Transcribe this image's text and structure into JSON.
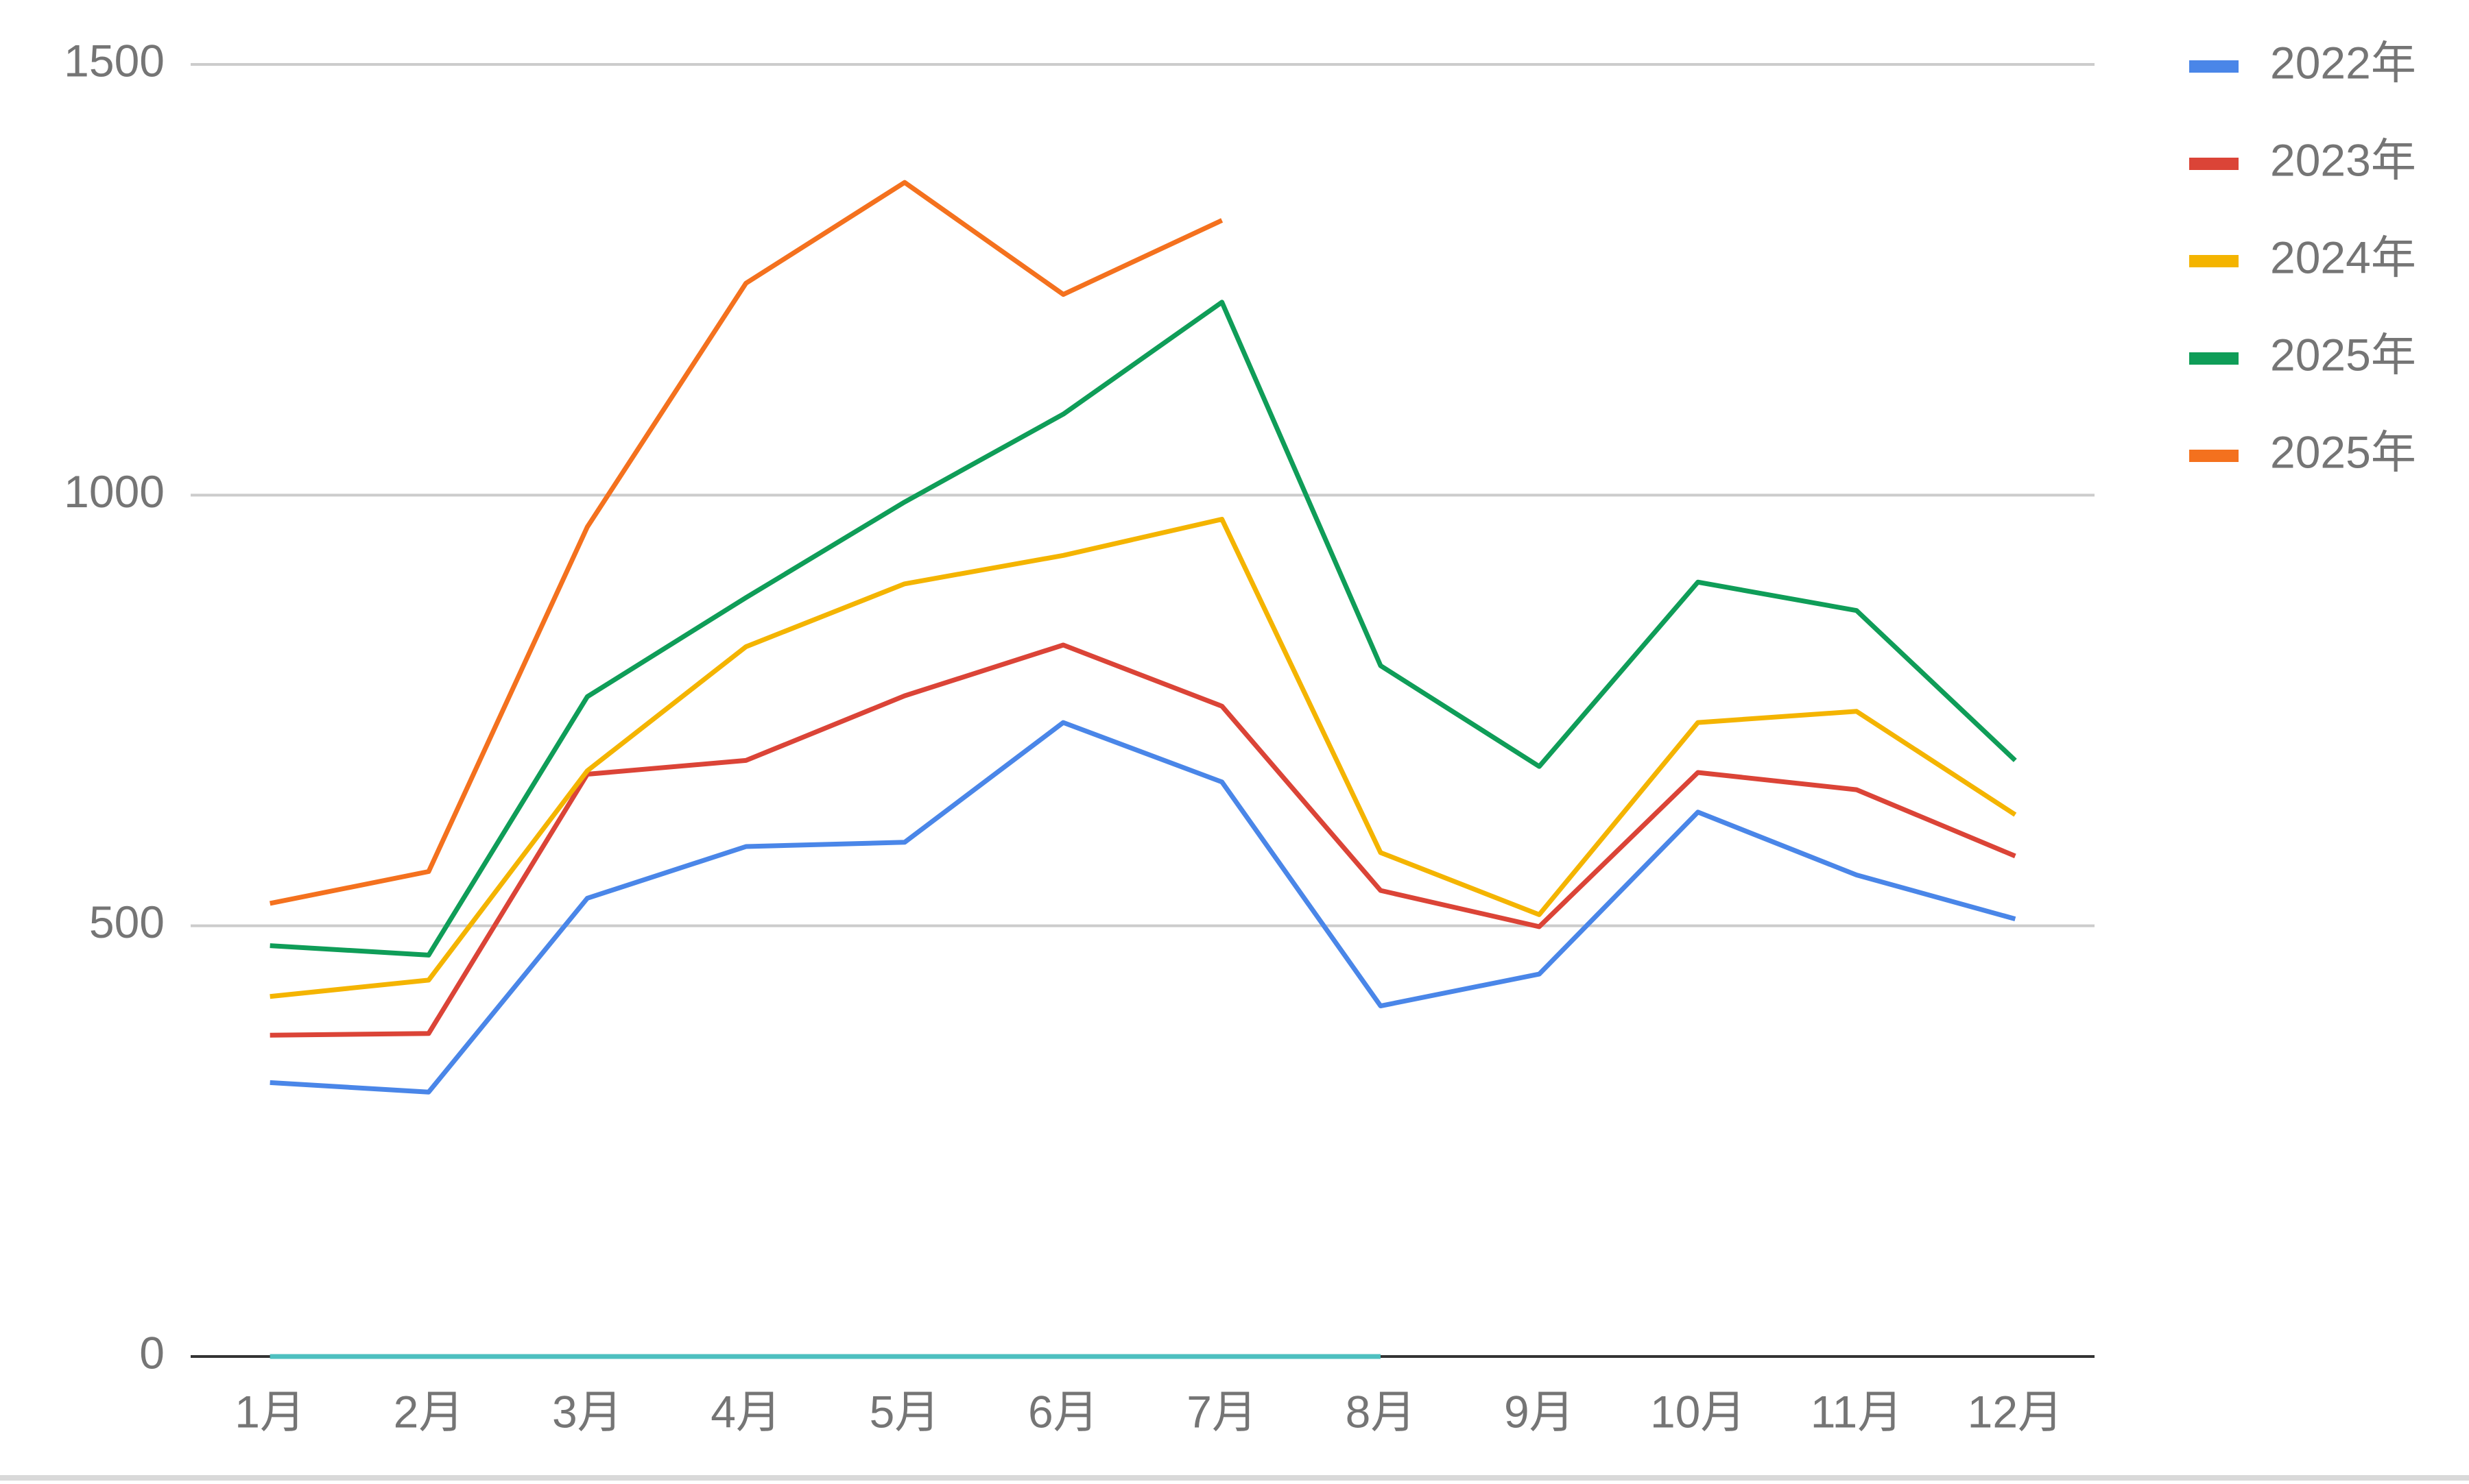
{
  "chart_data": {
    "type": "line",
    "categories": [
      "1月",
      "2月",
      "3月",
      "4月",
      "5月",
      "6月",
      "7月",
      "8月",
      "9月",
      "10月",
      "11月",
      "12月"
    ],
    "series": [
      {
        "name": "2022年",
        "color": "#4a86e8",
        "values": [
          318,
          307,
          532,
          592,
          597,
          736,
          667,
          407,
          444,
          632,
          559,
          508
        ]
      },
      {
        "name": "2023年",
        "color": "#db4437",
        "values": [
          373,
          375,
          676,
          692,
          767,
          826,
          755,
          541,
          499,
          678,
          658,
          581
        ]
      },
      {
        "name": "2024年",
        "color": "#f4b400",
        "values": [
          418,
          437,
          680,
          824,
          897,
          930,
          972,
          585,
          513,
          736,
          749,
          629
        ]
      },
      {
        "name": "2025年",
        "color": "#0f9d58",
        "values": [
          477,
          466,
          766,
          881,
          992,
          1094,
          1224,
          802,
          685,
          899,
          866,
          692
        ]
      },
      {
        "name": "2025年",
        "color": "#f4711e",
        "values": [
          526,
          563,
          963,
          1246,
          1363,
          1233,
          1319,
          null,
          null,
          null,
          null,
          null
        ]
      },
      {
        "color": "#4ec0c0",
        "values": [
          0,
          0,
          0,
          0,
          0,
          0,
          0,
          0,
          null,
          null,
          null,
          null
        ]
      }
    ],
    "ylim": [
      0,
      1500
    ],
    "yticks": [
      0,
      500,
      1000,
      1500
    ],
    "grid": true,
    "legend": "right"
  }
}
